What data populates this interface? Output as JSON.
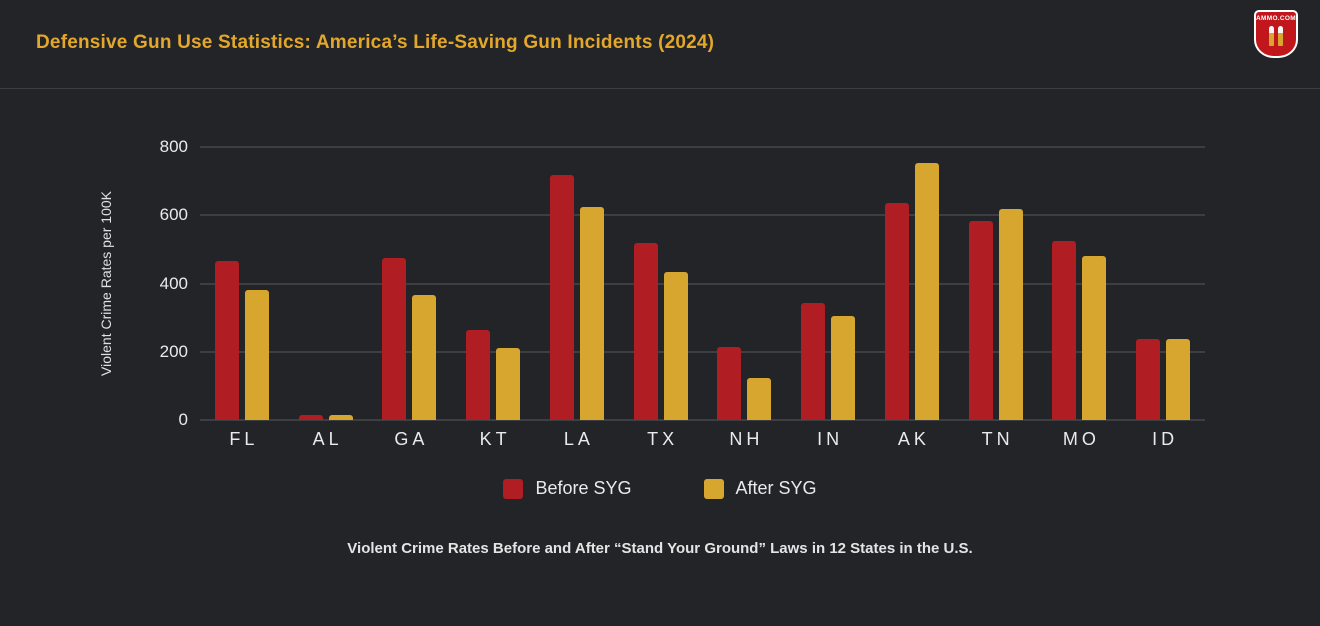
{
  "header": {
    "title": "Defensive Gun Use Statistics: America’s Life-Saving Gun Incidents (2024)",
    "title_color": "#e3a72b",
    "logo_text": "AMMO.COM"
  },
  "chart_data": {
    "type": "bar",
    "categories": [
      "FL",
      "AL",
      "GA",
      "KT",
      "LA",
      "TX",
      "NH",
      "IN",
      "AK",
      "TN",
      "MO",
      "ID"
    ],
    "series": [
      {
        "name": "Before SYG",
        "color": "#b01e24",
        "values": [
          465,
          15,
          475,
          265,
          718,
          518,
          214,
          343,
          636,
          583,
          525,
          237
        ]
      },
      {
        "name": "After SYG",
        "color": "#d6a62e",
        "values": [
          380,
          15,
          365,
          212,
          625,
          433,
          123,
          305,
          752,
          618,
          481,
          238
        ]
      }
    ],
    "ylabel": "Violent Crime Rates per 100K",
    "xlabel": "",
    "ylim": [
      0,
      800
    ],
    "yticks": [
      0,
      200,
      400,
      600,
      800
    ],
    "grid": true,
    "legend_position": "bottom"
  },
  "caption": "Violent Crime Rates Before and After “Stand Your Ground” Laws in 12 States in the U.S."
}
